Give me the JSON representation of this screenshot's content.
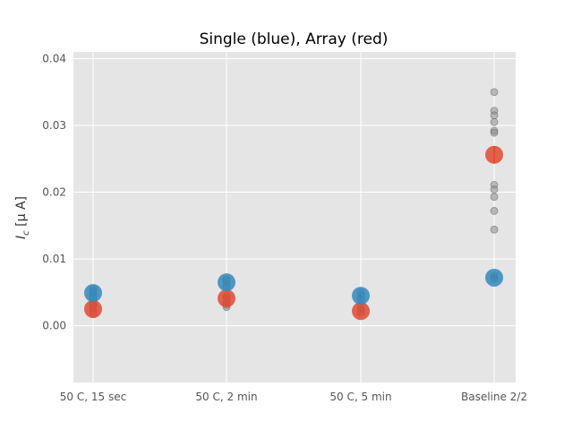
{
  "chart_data": {
    "type": "scatter",
    "title": "Single (blue), Array (red)",
    "xlabel": "",
    "ylabel": "I_c [μ A]",
    "ylabel_main": "I",
    "ylabel_sub": "c",
    "ylabel_rest": " [μ A]",
    "categories": [
      "50 C, 15 sec",
      "50 C, 2 min",
      "50 C, 5 min",
      "Baseline 2/2"
    ],
    "ylim": [
      -0.0085,
      0.041
    ],
    "yticks": [
      0.0,
      0.01,
      0.02,
      0.03,
      0.04
    ],
    "ytick_labels": [
      "0.00",
      "0.01",
      "0.02",
      "0.03",
      "0.04"
    ],
    "grid": true,
    "background": "#e5e5e5",
    "grid_color": "#ffffff",
    "series": [
      {
        "role": "raw-points",
        "color": "#8c8c8c",
        "points": [
          {
            "category": "50 C, 15 sec",
            "values": [
              0.0056,
              0.0053,
              0.005,
              0.0048,
              0.0045,
              0.0043,
              0.004,
              0.0036,
              0.0033,
              0.003,
              0.0027,
              0.0024,
              0.0021,
              0.0018
            ]
          },
          {
            "category": "50 C, 2 min",
            "values": [
              0.007,
              0.0067,
              0.0064,
              0.006,
              0.0057,
              0.0045,
              0.0042,
              0.0038,
              0.0034,
              0.0031,
              0.0028
            ]
          },
          {
            "category": "50 C, 5 min",
            "values": [
              0.005,
              0.0047,
              0.0044,
              0.0041,
              0.0038,
              0.0028,
              0.0025,
              0.0022,
              0.0019
            ]
          },
          {
            "category": "Baseline 2/2",
            "values": [
              0.035,
              0.0322,
              0.0315,
              0.0305,
              0.0292,
              0.0289,
              0.0211,
              0.0204,
              0.0193,
              0.0172,
              0.0144,
              0.0075,
              0.0072,
              0.007
            ]
          }
        ]
      },
      {
        "role": "mean-single",
        "color": "#348abd",
        "values": [
          0.0049,
          0.0065,
          0.0045,
          0.0072
        ],
        "errors": [
          0.0003,
          0.0003,
          0.0003,
          0.0002
        ]
      },
      {
        "role": "mean-array",
        "color": "#e24a33",
        "values": [
          0.0025,
          0.0041,
          0.0022,
          0.0256
        ],
        "errors": [
          0.0003,
          0.0004,
          0.0003,
          0.0013
        ]
      }
    ]
  }
}
